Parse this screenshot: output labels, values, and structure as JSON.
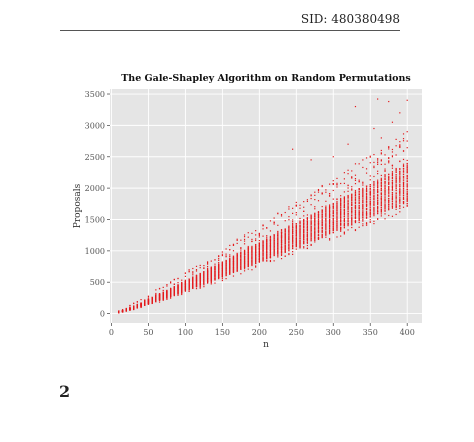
{
  "header": {
    "sid": "SID: 480380498"
  },
  "page_number": "2",
  "chart_data": {
    "type": "scatter",
    "title": "The Gale-Shapley Algorithm on Random Permutations",
    "xlabel": "n",
    "ylabel": "Proposals",
    "xlim": [
      -2,
      420
    ],
    "ylim": [
      -150,
      3580
    ],
    "x_ticks": [
      0,
      50,
      100,
      150,
      200,
      250,
      300,
      350,
      400
    ],
    "y_ticks": [
      0,
      500,
      1000,
      1500,
      2000,
      2500,
      3000,
      3500
    ],
    "grid": true,
    "marker_color": "#e41a1c",
    "background_color": "#e5e5e5",
    "sampling": "n = 10, 15, 20, ..., 400; repeated random trials per n",
    "series": [
      {
        "x": [
          10,
          20,
          30,
          40,
          50,
          60,
          70,
          80,
          90,
          100,
          110,
          120,
          130,
          140,
          150,
          160,
          170,
          180,
          190,
          200,
          210,
          220,
          230,
          240,
          250,
          260,
          270,
          280,
          290,
          300,
          310,
          320,
          330,
          340,
          350,
          360,
          370,
          380,
          390,
          400
        ],
        "y_typical_low": [
          15,
          40,
          70,
          110,
          150,
          190,
          230,
          270,
          310,
          360,
          400,
          450,
          490,
          540,
          580,
          630,
          680,
          720,
          770,
          820,
          870,
          920,
          960,
          1010,
          1060,
          1110,
          1160,
          1200,
          1250,
          1300,
          1350,
          1400,
          1440,
          1490,
          1540,
          1590,
          1640,
          1680,
          1720,
          1760
        ],
        "y_typical_high": [
          30,
          70,
          120,
          170,
          230,
          290,
          340,
          400,
          460,
          520,
          580,
          640,
          700,
          760,
          820,
          880,
          950,
          1010,
          1070,
          1130,
          1190,
          1260,
          1320,
          1380,
          1440,
          1500,
          1570,
          1630,
          1690,
          1750,
          1810,
          1880,
          1940,
          2000,
          2060,
          2120,
          2190,
          2250,
          2310,
          2370
        ]
      }
    ],
    "outliers": [
      {
        "x": 330,
        "y": 3300
      },
      {
        "x": 360,
        "y": 3420
      },
      {
        "x": 375,
        "y": 3380
      },
      {
        "x": 400,
        "y": 3400
      },
      {
        "x": 390,
        "y": 3200
      },
      {
        "x": 245,
        "y": 2620
      },
      {
        "x": 355,
        "y": 2950
      },
      {
        "x": 365,
        "y": 2800
      },
      {
        "x": 380,
        "y": 3050
      },
      {
        "x": 270,
        "y": 2450
      },
      {
        "x": 300,
        "y": 2500
      },
      {
        "x": 320,
        "y": 2700
      }
    ]
  }
}
